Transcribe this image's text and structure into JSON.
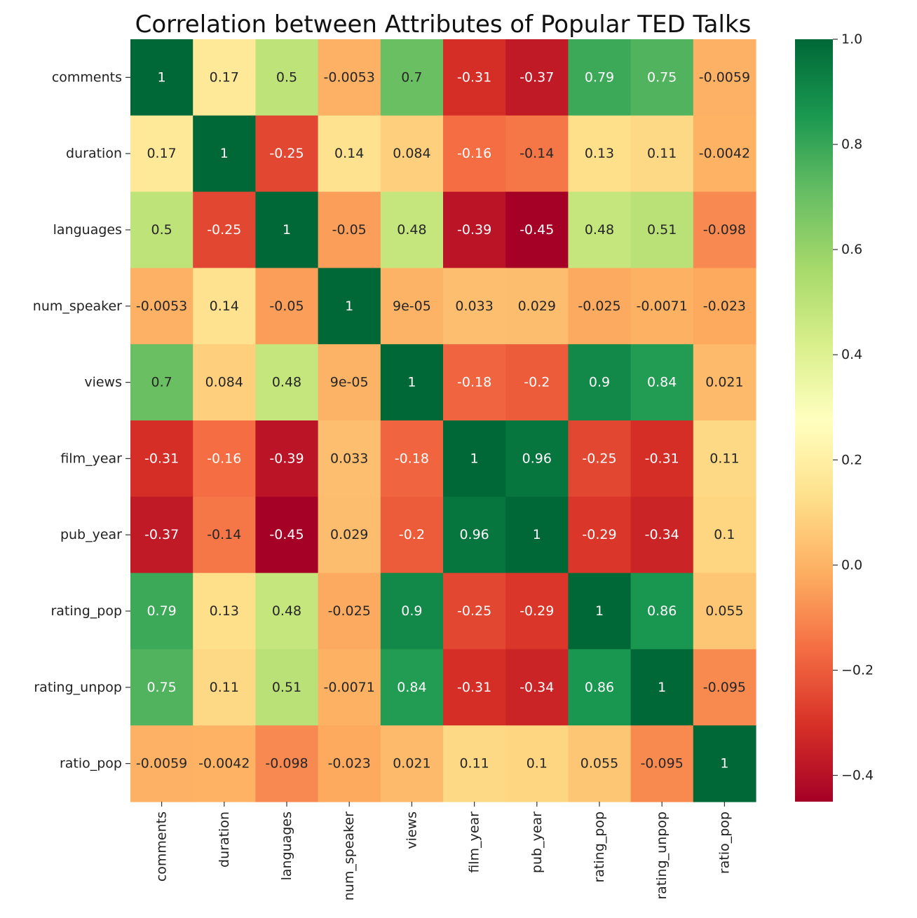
{
  "chart_data": {
    "type": "heatmap",
    "title": "Correlation between Attributes of Popular TED Talks",
    "xlabel": "",
    "ylabel": "",
    "rows": [
      "comments",
      "duration",
      "languages",
      "num_speaker",
      "views",
      "film_year",
      "pub_year",
      "rating_pop",
      "rating_unpop",
      "ratio_pop"
    ],
    "columns": [
      "comments",
      "duration",
      "languages",
      "num_speaker",
      "views",
      "film_year",
      "pub_year",
      "rating_pop",
      "rating_unpop",
      "ratio_pop"
    ],
    "values": [
      [
        1,
        0.17,
        0.5,
        -0.0053,
        0.7,
        -0.31,
        -0.37,
        0.79,
        0.75,
        -0.0059
      ],
      [
        0.17,
        1,
        -0.25,
        0.14,
        0.084,
        -0.16,
        -0.14,
        0.13,
        0.11,
        -0.0042
      ],
      [
        0.5,
        -0.25,
        1,
        -0.05,
        0.48,
        -0.39,
        -0.45,
        0.48,
        0.51,
        -0.098
      ],
      [
        -0.0053,
        0.14,
        -0.05,
        1,
        9e-05,
        0.033,
        0.029,
        -0.025,
        -0.0071,
        -0.023
      ],
      [
        0.7,
        0.084,
        0.48,
        9e-05,
        1,
        -0.18,
        -0.2,
        0.9,
        0.84,
        0.021
      ],
      [
        -0.31,
        -0.16,
        -0.39,
        0.033,
        -0.18,
        1,
        0.96,
        -0.25,
        -0.31,
        0.11
      ],
      [
        -0.37,
        -0.14,
        -0.45,
        0.029,
        -0.2,
        0.96,
        1,
        -0.29,
        -0.34,
        0.1
      ],
      [
        0.79,
        0.13,
        0.48,
        -0.025,
        0.9,
        -0.25,
        -0.29,
        1,
        0.86,
        0.055
      ],
      [
        0.75,
        0.11,
        0.51,
        -0.0071,
        0.84,
        -0.31,
        -0.34,
        0.86,
        1,
        -0.095
      ],
      [
        -0.0059,
        -0.0042,
        -0.098,
        -0.023,
        0.021,
        0.11,
        0.1,
        0.055,
        -0.095,
        1
      ]
    ],
    "annotations": [
      [
        "1",
        "0.17",
        "0.5",
        "-0.0053",
        "0.7",
        "-0.31",
        "-0.37",
        "0.79",
        "0.75",
        "-0.0059"
      ],
      [
        "0.17",
        "1",
        "-0.25",
        "0.14",
        "0.084",
        "-0.16",
        "-0.14",
        "0.13",
        "0.11",
        "-0.0042"
      ],
      [
        "0.5",
        "-0.25",
        "1",
        "-0.05",
        "0.48",
        "-0.39",
        "-0.45",
        "0.48",
        "0.51",
        "-0.098"
      ],
      [
        "-0.0053",
        "0.14",
        "-0.05",
        "1",
        "9e-05",
        "0.033",
        "0.029",
        "-0.025",
        "-0.0071",
        "-0.023"
      ],
      [
        "0.7",
        "0.084",
        "0.48",
        "9e-05",
        "1",
        "-0.18",
        "-0.2",
        "0.9",
        "0.84",
        "0.021"
      ],
      [
        "-0.31",
        "-0.16",
        "-0.39",
        "0.033",
        "-0.18",
        "1",
        "0.96",
        "-0.25",
        "-0.31",
        "0.11"
      ],
      [
        "-0.37",
        "-0.14",
        "-0.45",
        "0.029",
        "-0.2",
        "0.96",
        "1",
        "-0.29",
        "-0.34",
        "0.1"
      ],
      [
        "0.79",
        "0.13",
        "0.48",
        "-0.025",
        "0.9",
        "-0.25",
        "-0.29",
        "1",
        "0.86",
        "0.055"
      ],
      [
        "0.75",
        "0.11",
        "0.51",
        "-0.0071",
        "0.84",
        "-0.31",
        "-0.34",
        "0.86",
        "1",
        "-0.095"
      ],
      [
        "-0.0059",
        "-0.0042",
        "-0.098",
        "-0.023",
        "0.021",
        "0.11",
        "0.1",
        "0.055",
        "-0.095",
        "1"
      ]
    ],
    "colormap": "RdYlGn",
    "vmin": -0.45,
    "vmax": 1.0,
    "colorbar": {
      "ticks": [
        -0.4,
        -0.2,
        0.0,
        0.2,
        0.4,
        0.6,
        0.8,
        1.0
      ],
      "tick_labels": [
        "−0.4",
        "−0.2",
        "0.0",
        "0.2",
        "0.4",
        "0.6",
        "0.8",
        "1.0"
      ],
      "placement": "right"
    },
    "grid": false
  }
}
